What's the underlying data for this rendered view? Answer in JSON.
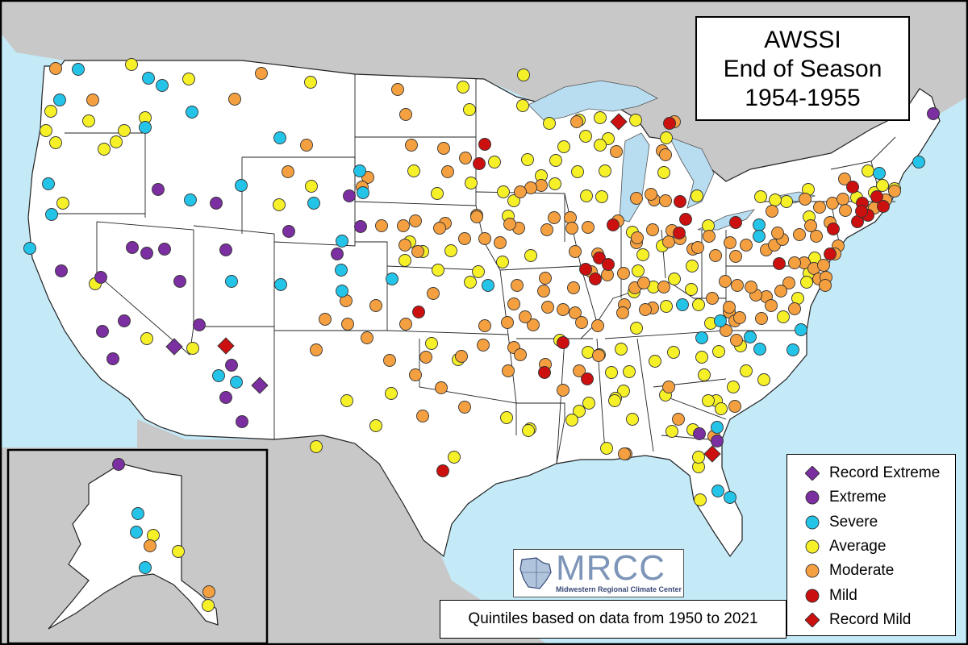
{
  "title": {
    "line1": "AWSSI",
    "line2": "End of Season",
    "line3": "1954-1955"
  },
  "note": "Quintiles based on data from 1950 to 2021",
  "logo": {
    "name": "MRCC",
    "subtitle": "Midwestern Regional Climate Center"
  },
  "colors": {
    "ocean": "#c4e9f7",
    "land_outside": "#c8c8c8",
    "us_land": "#ffffff",
    "lake": "#b8ddf0",
    "record_extreme": "#7b2fa0",
    "extreme": "#7b2fa0",
    "severe": "#24c4e8",
    "average": "#f5f028",
    "moderate": "#f5a040",
    "mild": "#cc1010",
    "record_mild": "#cc1010"
  },
  "legend": [
    {
      "key": "record_extreme",
      "label": "Record Extreme",
      "shape": "diamond"
    },
    {
      "key": "extreme",
      "label": "Extreme",
      "shape": "circle"
    },
    {
      "key": "severe",
      "label": "Severe",
      "shape": "circle"
    },
    {
      "key": "average",
      "label": "Average",
      "shape": "circle"
    },
    {
      "key": "moderate",
      "label": "Moderate",
      "shape": "circle"
    },
    {
      "key": "mild",
      "label": "Mild",
      "shape": "circle"
    },
    {
      "key": "record_mild",
      "label": "Record Mild",
      "shape": "diamond"
    }
  ],
  "stations": {
    "record_extreme": [
      [
        216,
        430
      ],
      [
        322,
        478
      ]
    ],
    "record_mild": [
      [
        767,
        151
      ],
      [
        280,
        429
      ],
      [
        883,
        563
      ]
    ],
    "extreme": [
      [
        1157,
        141
      ],
      [
        196,
        235
      ],
      [
        268,
        252
      ],
      [
        433,
        243
      ],
      [
        447,
        281
      ],
      [
        358,
        287
      ],
      [
        164,
        307
      ],
      [
        182,
        314
      ],
      [
        204,
        309
      ],
      [
        280,
        310
      ],
      [
        418,
        315
      ],
      [
        76,
        336
      ],
      [
        125,
        344
      ],
      [
        223,
        349
      ],
      [
        154,
        398
      ],
      [
        127,
        411
      ],
      [
        247,
        403
      ],
      [
        140,
        445
      ],
      [
        287,
        453
      ],
      [
        280,
        493
      ],
      [
        300,
        523
      ],
      [
        867,
        538
      ],
      [
        889,
        547
      ],
      [
        147,
        576
      ]
    ],
    "severe": [
      [
        97,
        86
      ],
      [
        184,
        97
      ],
      [
        201,
        106
      ],
      [
        74,
        124
      ],
      [
        238,
        139
      ],
      [
        180,
        158
      ],
      [
        347,
        171
      ],
      [
        446,
        212
      ],
      [
        299,
        230
      ],
      [
        450,
        239
      ],
      [
        236,
        248
      ],
      [
        389,
        252
      ],
      [
        60,
        228
      ],
      [
        64,
        266
      ],
      [
        424,
        299
      ],
      [
        37,
        308
      ],
      [
        423,
        335
      ],
      [
        287,
        349
      ],
      [
        348,
        353
      ],
      [
        424,
        361
      ],
      [
        486,
        346
      ],
      [
        605,
        354
      ],
      [
        846,
        378
      ],
      [
        941,
        279
      ],
      [
        941,
        293
      ],
      [
        893,
        398
      ],
      [
        930,
        418
      ],
      [
        870,
        419
      ],
      [
        942,
        433
      ],
      [
        983,
        434
      ],
      [
        993,
        409
      ],
      [
        889,
        530
      ],
      [
        890,
        609
      ],
      [
        905,
        617
      ],
      [
        1139,
        201
      ],
      [
        1090,
        215
      ],
      [
        271,
        466
      ],
      [
        293,
        474
      ],
      [
        171,
        637
      ],
      [
        169,
        660
      ],
      [
        180,
        704
      ]
    ],
    "average": [
      [
        163,
        80
      ],
      [
        234,
        98
      ],
      [
        385,
        102
      ],
      [
        180,
        146
      ],
      [
        63,
        138
      ],
      [
        110,
        150
      ],
      [
        57,
        162
      ],
      [
        154,
        162
      ],
      [
        69,
        177
      ],
      [
        129,
        185
      ],
      [
        144,
        176
      ],
      [
        78,
        252
      ],
      [
        118,
        352
      ],
      [
        182,
        420
      ],
      [
        239,
        432
      ],
      [
        346,
        254
      ],
      [
        386,
        231
      ],
      [
        574,
        108
      ],
      [
        582,
        136
      ],
      [
        649,
        93
      ],
      [
        648,
        131
      ],
      [
        681,
        153
      ],
      [
        718,
        149
      ],
      [
        744,
        146
      ],
      [
        788,
        149
      ],
      [
        754,
        172
      ],
      [
        726,
        169
      ],
      [
        699,
        182
      ],
      [
        689,
        199
      ],
      [
        671,
        218
      ],
      [
        716,
        213
      ],
      [
        750,
        212
      ],
      [
        826,
        171
      ],
      [
        823,
        214
      ],
      [
        654,
        198
      ],
      [
        613,
        201
      ],
      [
        624,
        238
      ],
      [
        637,
        249
      ],
      [
        542,
        240
      ],
      [
        513,
        212
      ],
      [
        584,
        227
      ],
      [
        508,
        300
      ],
      [
        502,
        323
      ],
      [
        524,
        312
      ],
      [
        559,
        311
      ],
      [
        543,
        335
      ],
      [
        583,
        350
      ],
      [
        593,
        337
      ],
      [
        623,
        325
      ],
      [
        658,
        317
      ],
      [
        630,
        268
      ],
      [
        688,
        228
      ],
      [
        727,
        243
      ],
      [
        746,
        244
      ],
      [
        784,
        288
      ],
      [
        791,
        336
      ],
      [
        797,
        316
      ],
      [
        864,
        243
      ],
      [
        821,
        305
      ],
      [
        858,
        330
      ],
      [
        878,
        280
      ],
      [
        836,
        346
      ],
      [
        857,
        359
      ],
      [
        810,
        356
      ],
      [
        786,
        362
      ],
      [
        826,
        380
      ],
      [
        866,
        378
      ],
      [
        881,
        401
      ],
      [
        789,
        407
      ],
      [
        770,
        433
      ],
      [
        743,
        440
      ],
      [
        694,
        422
      ],
      [
        729,
        437
      ],
      [
        758,
        462
      ],
      [
        780,
        461
      ],
      [
        812,
        448
      ],
      [
        835,
        437
      ],
      [
        870,
        443
      ],
      [
        891,
        436
      ],
      [
        918,
        429
      ],
      [
        873,
        465
      ],
      [
        909,
        480
      ],
      [
        925,
        460
      ],
      [
        947,
        471
      ],
      [
        989,
        370
      ],
      [
        1003,
        339
      ],
      [
        1010,
        320
      ],
      [
        971,
        393
      ],
      [
        888,
        497
      ],
      [
        878,
        497
      ],
      [
        894,
        507
      ],
      [
        859,
        533
      ],
      [
        833,
        535
      ],
      [
        825,
        490
      ],
      [
        784,
        520
      ],
      [
        773,
        485
      ],
      [
        763,
        494
      ],
      [
        762,
        497
      ],
      [
        752,
        556
      ],
      [
        657,
        532
      ],
      [
        628,
        518
      ],
      [
        563,
        567
      ],
      [
        535,
        426
      ],
      [
        568,
        446
      ],
      [
        655,
        534
      ],
      [
        718,
        510
      ],
      [
        709,
        521
      ],
      [
        730,
        500
      ],
      [
        1076,
        212
      ],
      [
        1084,
        239
      ],
      [
        1002,
        235
      ],
      [
        1003,
        269
      ],
      [
        975,
        250
      ],
      [
        961,
        248
      ],
      [
        943,
        244
      ],
      [
        1062,
        245
      ],
      [
        1094,
        230
      ],
      [
        1109,
        234
      ],
      [
        1000,
        350
      ],
      [
        430,
        497
      ],
      [
        392,
        554
      ],
      [
        485,
        488
      ],
      [
        466,
        528
      ],
      [
        868,
        620
      ],
      [
        866,
        579
      ],
      [
        866,
        567
      ],
      [
        190,
        664
      ],
      [
        221,
        684
      ],
      [
        258,
        751
      ],
      [
        744,
        180
      ]
    ],
    "moderate": [
      [
        69,
        85
      ],
      [
        115,
        124
      ],
      [
        324,
        91
      ],
      [
        291,
        123
      ],
      [
        380,
        180
      ],
      [
        493,
        111
      ],
      [
        503,
        142
      ],
      [
        510,
        180
      ],
      [
        550,
        184
      ],
      [
        577,
        196
      ],
      [
        555,
        213
      ],
      [
        456,
        220
      ],
      [
        357,
        213
      ],
      [
        449,
        232
      ],
      [
        500,
        280
      ],
      [
        473,
        280
      ],
      [
        502,
        304
      ],
      [
        552,
        277
      ],
      [
        591,
        267
      ],
      [
        576,
        296
      ],
      [
        601,
        296
      ],
      [
        620,
        301
      ],
      [
        545,
        283
      ],
      [
        515,
        274
      ],
      [
        518,
        312
      ],
      [
        537,
        364
      ],
      [
        591,
        269
      ],
      [
        643,
        283
      ],
      [
        671,
        230
      ],
      [
        658,
        233
      ],
      [
        645,
        238
      ],
      [
        632,
        278
      ],
      [
        678,
        285
      ],
      [
        687,
        270
      ],
      [
        707,
        270
      ],
      [
        709,
        283
      ],
      [
        729,
        282
      ],
      [
        766,
        274
      ],
      [
        713,
        312
      ],
      [
        741,
        315
      ],
      [
        753,
        341
      ],
      [
        789,
        301
      ],
      [
        809,
        285
      ],
      [
        829,
        300
      ],
      [
        833,
        286
      ],
      [
        879,
        293
      ],
      [
        905,
        301
      ],
      [
        912,
        318
      ],
      [
        925,
        304
      ],
      [
        950,
        310
      ],
      [
        960,
        304
      ],
      [
        970,
        297
      ],
      [
        991,
        291
      ],
      [
        997,
        326
      ],
      [
        985,
        326
      ],
      [
        1009,
        333
      ],
      [
        1021,
        329
      ],
      [
        1015,
        346
      ],
      [
        1024,
        344
      ],
      [
        978,
        351
      ],
      [
        968,
        361
      ],
      [
        950,
        368
      ],
      [
        937,
        366
      ],
      [
        914,
        354
      ],
      [
        904,
        387
      ],
      [
        911,
        398
      ],
      [
        917,
        394
      ],
      [
        904,
        381
      ],
      [
        883,
        370
      ],
      [
        809,
        382
      ],
      [
        774,
        378
      ],
      [
        772,
        388
      ],
      [
        741,
        404
      ],
      [
        742,
        441
      ],
      [
        718,
        460
      ],
      [
        698,
        484
      ],
      [
        676,
        452
      ],
      [
        637,
        431
      ],
      [
        630,
        460
      ],
      [
        645,
        440
      ],
      [
        599,
        428
      ],
      [
        629,
        400
      ],
      [
        661,
        403
      ],
      [
        674,
        361
      ],
      [
        676,
        345
      ],
      [
        679,
        381
      ],
      [
        711,
        357
      ],
      [
        713,
        388
      ],
      [
        733,
        337
      ],
      [
        773,
        339
      ],
      [
        787,
        357
      ],
      [
        798,
        351
      ],
      [
        800,
        384
      ],
      [
        823,
        356
      ],
      [
        843,
        296
      ],
      [
        859,
        309
      ],
      [
        865,
        307
      ],
      [
        887,
        317
      ],
      [
        899,
        349
      ],
      [
        931,
        356
      ],
      [
        957,
        262
      ],
      [
        964,
        289
      ],
      [
        998,
        247
      ],
      [
        1016,
        257
      ],
      [
        1032,
        252
      ],
      [
        1047,
        222
      ],
      [
        1045,
        247
      ],
      [
        1048,
        261
      ],
      [
        1073,
        260
      ],
      [
        1084,
        258
      ],
      [
        1098,
        248
      ],
      [
        1109,
        237
      ],
      [
        1039,
        305
      ],
      [
        1035,
        315
      ],
      [
        1029,
        276
      ],
      [
        1012,
        293
      ],
      [
        1023,
        354
      ],
      [
        1005,
        280
      ],
      [
        913,
        422
      ],
      [
        900,
        410
      ],
      [
        944,
        395
      ],
      [
        956,
        379
      ],
      [
        985,
        383
      ],
      [
        431,
        402
      ],
      [
        429,
        373
      ],
      [
        466,
        379
      ],
      [
        403,
        396
      ],
      [
        455,
        419
      ],
      [
        547,
        481
      ],
      [
        576,
        505
      ],
      [
        524,
        516
      ],
      [
        483,
        447
      ],
      [
        515,
        465
      ],
      [
        572,
        442
      ],
      [
        528,
        443
      ],
      [
        503,
        402
      ],
      [
        392,
        434
      ],
      [
        641,
        354
      ],
      [
        637,
        377
      ],
      [
        651,
        393
      ],
      [
        601,
        404
      ],
      [
        698,
        384
      ],
      [
        721,
        400
      ],
      [
        776,
        563
      ],
      [
        774,
        563
      ],
      [
        829,
        480
      ],
      [
        841,
        520
      ],
      [
        911,
        504
      ],
      [
        885,
        541
      ],
      [
        790,
        295
      ],
      [
        764,
        188
      ],
      [
        811,
        248
      ],
      [
        789,
        246
      ],
      [
        807,
        241
      ],
      [
        825,
        249
      ],
      [
        186,
        677
      ],
      [
        259,
        734
      ],
      [
        715,
        151
      ],
      [
        821,
        187
      ],
      [
        825,
        192
      ],
      [
        836,
        151
      ]
    ],
    "mild": [
      [
        601,
        179
      ],
      [
        594,
        203
      ],
      [
        830,
        153
      ],
      [
        843,
        250
      ],
      [
        850,
        272
      ],
      [
        760,
        279
      ],
      [
        842,
        289
      ],
      [
        912,
        276
      ],
      [
        1033,
        284
      ],
      [
        1029,
        315
      ],
      [
        966,
        327
      ],
      [
        726,
        334
      ],
      [
        743,
        320
      ],
      [
        738,
        346
      ],
      [
        754,
        328
      ],
      [
        519,
        387
      ],
      [
        698,
        425
      ],
      [
        675,
        462
      ],
      [
        728,
        470
      ],
      [
        1057,
        232
      ],
      [
        1069,
        252
      ],
      [
        1087,
        244
      ],
      [
        1095,
        256
      ],
      [
        1063,
        275
      ],
      [
        1076,
        267
      ],
      [
        1068,
        262
      ],
      [
        549,
        584
      ]
    ]
  }
}
